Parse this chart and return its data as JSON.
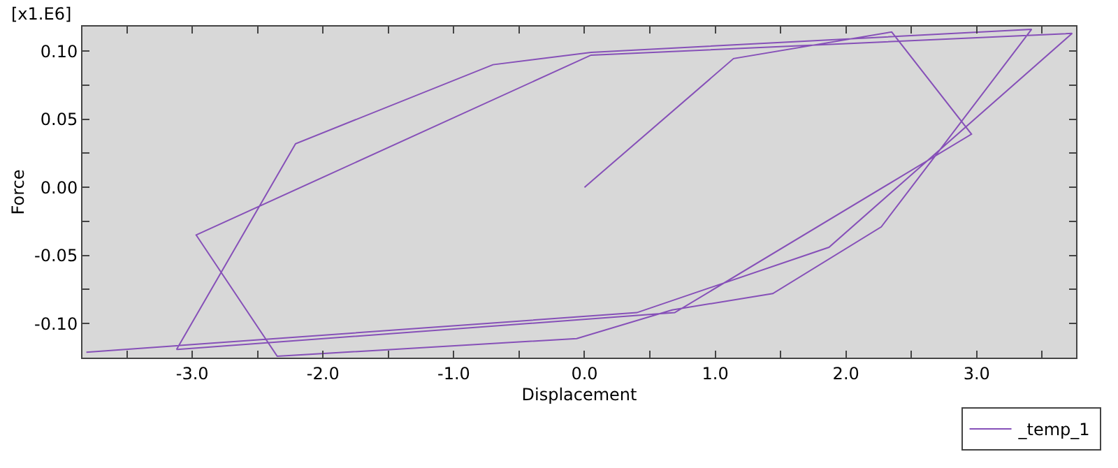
{
  "chart_data": {
    "type": "line",
    "xlabel": "Displacement",
    "ylabel": "Force",
    "annotations": [
      "[x1.E6]"
    ],
    "x": [
      0.0,
      1.14,
      2.35,
      2.96,
      0.69,
      -3.12,
      -2.21,
      -0.7,
      0.05,
      3.42,
      2.27,
      1.44,
      0.67,
      -0.06,
      -2.35,
      -2.97,
      0.05,
      3.73,
      1.87,
      0.4,
      -3.81
    ],
    "series": [
      {
        "name": "_temp_1",
        "color": "#8650b8",
        "values": [
          0.0,
          0.0945,
          0.114,
          0.039,
          -0.092,
          -0.119,
          0.032,
          0.09,
          0.099,
          0.116,
          -0.029,
          -0.078,
          -0.09,
          -0.111,
          -0.124,
          -0.035,
          0.097,
          0.113,
          -0.044,
          -0.092,
          -0.121
        ]
      }
    ],
    "xlim": [
      -3.84,
      3.76
    ],
    "ylim": [
      -0.125,
      0.118
    ],
    "xticks": [
      {
        "value": -3.5,
        "label": null
      },
      {
        "value": -3.0,
        "label": "-3.0"
      },
      {
        "value": -2.5,
        "label": null
      },
      {
        "value": -2.0,
        "label": "-2.0"
      },
      {
        "value": -1.5,
        "label": null
      },
      {
        "value": -1.0,
        "label": "-1.0"
      },
      {
        "value": -0.5,
        "label": null
      },
      {
        "value": 0.0,
        "label": "0.0"
      },
      {
        "value": 0.5,
        "label": null
      },
      {
        "value": 1.0,
        "label": "1.0"
      },
      {
        "value": 1.5,
        "label": null
      },
      {
        "value": 2.0,
        "label": "2.0"
      },
      {
        "value": 2.5,
        "label": null
      },
      {
        "value": 3.0,
        "label": "3.0"
      },
      {
        "value": 3.5,
        "label": null
      }
    ],
    "yticks": [
      {
        "value": -0.1,
        "label": "-0.10"
      },
      {
        "value": -0.075,
        "label": null
      },
      {
        "value": -0.05,
        "label": "-0.05"
      },
      {
        "value": -0.025,
        "label": null
      },
      {
        "value": 0.0,
        "label": "0.00"
      },
      {
        "value": 0.025,
        "label": null
      },
      {
        "value": 0.05,
        "label": "0.05"
      },
      {
        "value": 0.075,
        "label": null
      },
      {
        "value": 0.1,
        "label": "0.10"
      }
    ],
    "grid": false,
    "legend": "bottom right",
    "marker": "none",
    "line_style": "solid"
  }
}
